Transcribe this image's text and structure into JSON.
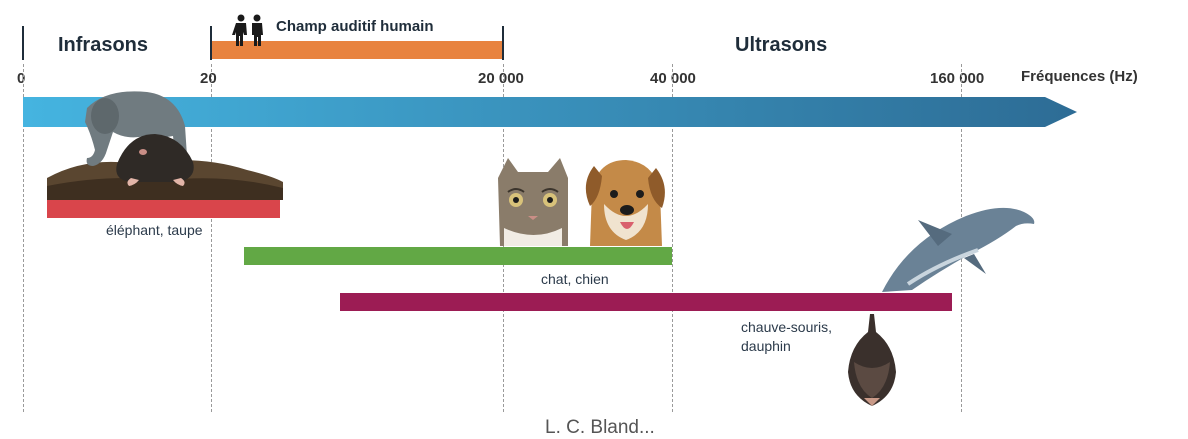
{
  "title": "",
  "bands": {
    "infrasons": "Infrasons",
    "human": "Champ auditif humain",
    "ultrasons": "Ultrasons"
  },
  "axis": {
    "label": "Fréquences (Hz)",
    "ticks": [
      "0",
      "20",
      "20 000",
      "40 000",
      "160 000"
    ]
  },
  "ranges": [
    {
      "label": "éléphant, taupe",
      "color": "#d9454b"
    },
    {
      "label": "chat, chien",
      "color": "#62a845"
    },
    {
      "label": "chauve-souris,\ndauphin",
      "color": "#9c1c54"
    }
  ],
  "colors": {
    "human_band": "#e8833f",
    "arrow_start": "#45b4e0",
    "arrow_end": "#2d6c95"
  },
  "footer": "L. C. Bland..."
}
